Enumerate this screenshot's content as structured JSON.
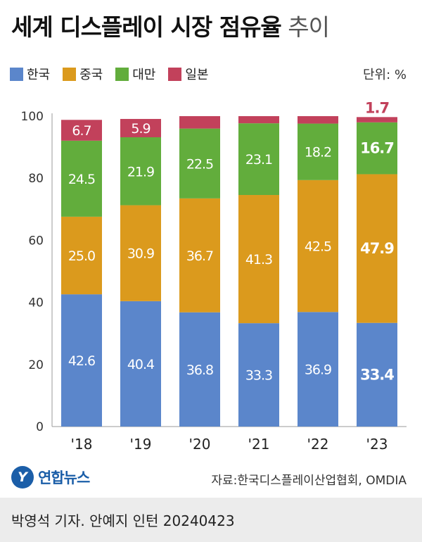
{
  "title": {
    "main": "세계 디스플레이 시장 점유율",
    "sub": "추이"
  },
  "unit_label": "단위: %",
  "logo_text": "연합뉴스",
  "source": "자료:한국디스플레이산업협회, OMDIA",
  "credit": "박영석 기자. 안예지 인턴  20240423",
  "colors": {
    "korea": "#5b86cb",
    "china": "#db9a1d",
    "taiwan": "#62ad3c",
    "japan": "#c2415b"
  },
  "chart_data": {
    "type": "bar",
    "stacked": true,
    "title": "세계 디스플레이 시장 점유율 추이",
    "unit": "%",
    "categories": [
      "'18",
      "'19",
      "'20",
      "'21",
      "'22",
      "'23"
    ],
    "y_ticks": [
      0,
      20,
      40,
      60,
      80,
      100
    ],
    "ylim": [
      0,
      100
    ],
    "legend_position": "top-left",
    "series": [
      {
        "name": "한국",
        "key": "korea",
        "values": [
          42.6,
          40.4,
          36.8,
          33.3,
          36.9,
          33.4
        ],
        "labels": [
          "42.6",
          "40.4",
          "36.8",
          "33.3",
          "36.9",
          "33.4"
        ]
      },
      {
        "name": "중국",
        "key": "china",
        "values": [
          25.0,
          30.9,
          36.7,
          41.3,
          42.5,
          47.9
        ],
        "labels": [
          "25.0",
          "30.9",
          "36.7",
          "41.3",
          "42.5",
          "47.9"
        ]
      },
      {
        "name": "대만",
        "key": "taiwan",
        "values": [
          24.5,
          21.9,
          22.5,
          23.1,
          18.2,
          16.7
        ],
        "labels": [
          "24.5",
          "21.9",
          "22.5",
          "23.1",
          "18.2",
          "16.7"
        ]
      },
      {
        "name": "일본",
        "key": "japan",
        "values": [
          6.7,
          5.9,
          4.0,
          2.3,
          2.4,
          1.7
        ],
        "labels": [
          "6.7",
          "5.9",
          "",
          "",
          "",
          "1.7"
        ]
      }
    ],
    "highlight_category": "'23"
  }
}
